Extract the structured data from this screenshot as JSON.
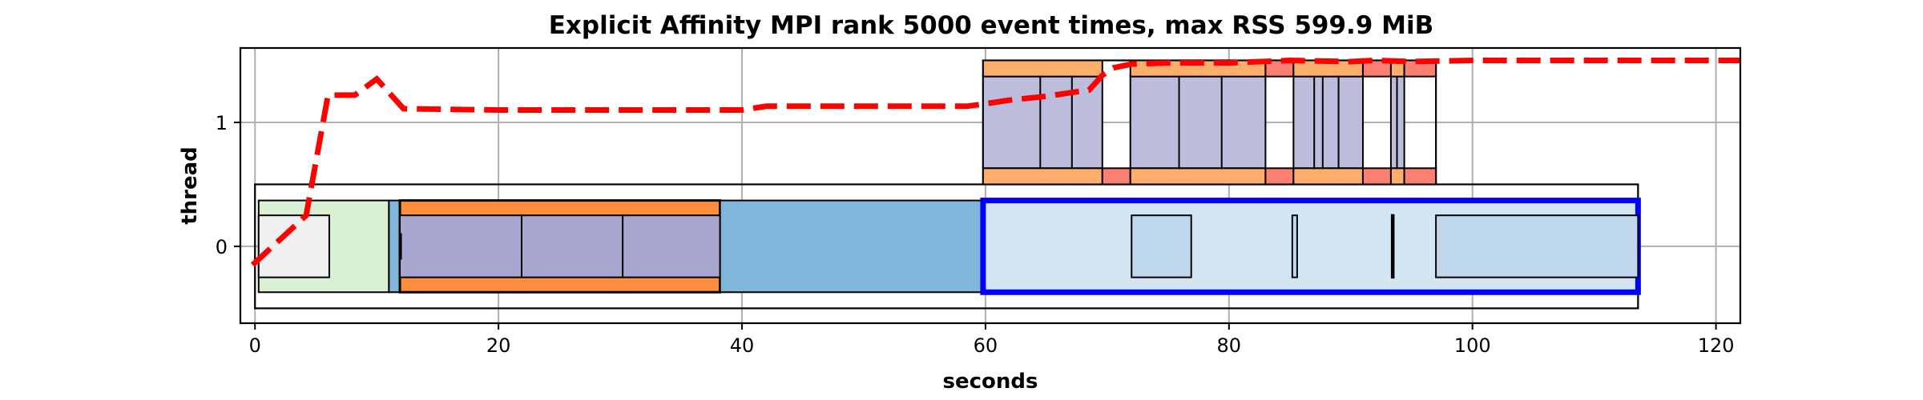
{
  "chart_data": {
    "type": "timeline",
    "title": "Explicit Affinity MPI rank 5000 event times, max RSS 599.9 MiB",
    "xlabel": "seconds",
    "ylabel": "thread",
    "xlim": [
      -1.2,
      122
    ],
    "ylim": [
      -0.62,
      1.6
    ],
    "xticks": [
      0,
      20,
      40,
      60,
      80,
      100,
      120
    ],
    "yticks": [
      0,
      1
    ],
    "grid": true,
    "colors": {
      "outline": "#000000",
      "rss_line": "#ff0000",
      "highlight": "#0000ff",
      "init": "#d9f0d3",
      "init_inner": "#f0f0f0",
      "io": "#fd8d3c",
      "io_light": "#fdae6b",
      "compute": "#a6a6d1",
      "compute_light": "#bcbddc",
      "comm": "#80b6d9",
      "idle": "#d3e5f3",
      "idle_inner": "#c0d8eb",
      "marker": "#fb8072"
    },
    "rects": [
      {
        "x0": 0.0,
        "x1": 113.6,
        "y0": -0.5,
        "y1": 0.5,
        "fill": "none",
        "lw": 2.2
      },
      {
        "x0": 0.3,
        "x1": 11.0,
        "y0": -0.37,
        "y1": 0.37,
        "fill": "init",
        "lw": 2
      },
      {
        "x0": 0.3,
        "x1": 6.1,
        "y0": -0.25,
        "y1": 0.25,
        "fill": "init_inner",
        "lw": 2
      },
      {
        "x0": 11.0,
        "x1": 11.9,
        "y0": -0.37,
        "y1": 0.37,
        "fill": "comm",
        "lw": 2
      },
      {
        "x0": 11.9,
        "x1": 38.2,
        "y0": -0.37,
        "y1": 0.37,
        "fill": "io",
        "lw": 3
      },
      {
        "x0": 11.9,
        "x1": 38.2,
        "y0": -0.25,
        "y1": 0.25,
        "fill": "compute",
        "lw": 2
      },
      {
        "x0": 11.9,
        "x1": 12.0,
        "y0": -0.1,
        "y1": 0.1,
        "fill": "compute",
        "lw": 2
      },
      {
        "x0": 21.9,
        "x1": 21.9,
        "y0": -0.25,
        "y1": 0.25,
        "fill": "compute",
        "lw": 2
      },
      {
        "x0": 30.2,
        "x1": 30.2,
        "y0": -0.25,
        "y1": 0.25,
        "fill": "compute",
        "lw": 2
      },
      {
        "x0": 38.2,
        "x1": 59.8,
        "y0": -0.37,
        "y1": 0.37,
        "fill": "comm",
        "lw": 2
      },
      {
        "x0": 59.8,
        "x1": 113.6,
        "y0": -0.37,
        "y1": 0.37,
        "fill": "idle",
        "lw": 7,
        "stroke": "highlight"
      },
      {
        "x0": 72.0,
        "x1": 76.9,
        "y0": -0.25,
        "y1": 0.25,
        "fill": "idle_inner",
        "lw": 2
      },
      {
        "x0": 85.2,
        "x1": 85.6,
        "y0": -0.25,
        "y1": 0.25,
        "fill": "idle_inner",
        "lw": 2
      },
      {
        "x0": 93.4,
        "x1": 93.5,
        "y0": -0.25,
        "y1": 0.25,
        "fill": "idle_inner",
        "lw": 3
      },
      {
        "x0": 97.0,
        "x1": 113.6,
        "y0": -0.25,
        "y1": 0.25,
        "fill": "idle_inner",
        "lw": 2
      },
      {
        "x0": 59.8,
        "x1": 97.0,
        "y0": 0.5,
        "y1": 1.5,
        "fill": "none",
        "lw": 2.2
      },
      {
        "x0": 59.8,
        "x1": 69.6,
        "y0": 0.63,
        "y1": 1.37,
        "fill": "compute_light",
        "lw": 2
      },
      {
        "x0": 59.8,
        "x1": 69.6,
        "y0": 1.37,
        "y1": 1.5,
        "fill": "io_light",
        "lw": 2
      },
      {
        "x0": 59.8,
        "x1": 69.6,
        "y0": 0.5,
        "y1": 0.63,
        "fill": "io_light",
        "lw": 2
      },
      {
        "x0": 64.5,
        "x1": 64.5,
        "y0": 0.63,
        "y1": 1.37,
        "fill": "none",
        "lw": 2
      },
      {
        "x0": 67.1,
        "x1": 67.1,
        "y0": 0.63,
        "y1": 1.37,
        "fill": "none",
        "lw": 2
      },
      {
        "x0": 69.6,
        "x1": 71.9,
        "y0": 0.5,
        "y1": 0.63,
        "fill": "marker",
        "lw": 2
      },
      {
        "x0": 71.9,
        "x1": 83.0,
        "y0": 0.63,
        "y1": 1.37,
        "fill": "compute_light",
        "lw": 2
      },
      {
        "x0": 71.9,
        "x1": 83.0,
        "y0": 1.37,
        "y1": 1.5,
        "fill": "io_light",
        "lw": 2
      },
      {
        "x0": 71.9,
        "x1": 83.0,
        "y0": 0.5,
        "y1": 0.63,
        "fill": "io_light",
        "lw": 2
      },
      {
        "x0": 75.9,
        "x1": 75.9,
        "y0": 0.63,
        "y1": 1.37,
        "fill": "none",
        "lw": 2
      },
      {
        "x0": 79.4,
        "x1": 79.4,
        "y0": 0.63,
        "y1": 1.37,
        "fill": "none",
        "lw": 2
      },
      {
        "x0": 83.0,
        "x1": 85.3,
        "y0": 1.37,
        "y1": 1.5,
        "fill": "marker",
        "lw": 2
      },
      {
        "x0": 83.0,
        "x1": 85.3,
        "y0": 0.5,
        "y1": 0.63,
        "fill": "marker",
        "lw": 2
      },
      {
        "x0": 85.3,
        "x1": 91.0,
        "y0": 0.63,
        "y1": 1.37,
        "fill": "compute_light",
        "lw": 2
      },
      {
        "x0": 85.3,
        "x1": 91.0,
        "y0": 1.37,
        "y1": 1.5,
        "fill": "io_light",
        "lw": 2
      },
      {
        "x0": 85.3,
        "x1": 91.0,
        "y0": 0.5,
        "y1": 0.63,
        "fill": "io_light",
        "lw": 2
      },
      {
        "x0": 87.0,
        "x1": 87.0,
        "y0": 0.63,
        "y1": 1.37,
        "fill": "none",
        "lw": 2
      },
      {
        "x0": 87.7,
        "x1": 87.7,
        "y0": 0.63,
        "y1": 1.37,
        "fill": "none",
        "lw": 2
      },
      {
        "x0": 89.0,
        "x1": 89.0,
        "y0": 0.63,
        "y1": 1.37,
        "fill": "none",
        "lw": 2
      },
      {
        "x0": 91.0,
        "x1": 93.3,
        "y0": 1.37,
        "y1": 1.5,
        "fill": "marker",
        "lw": 2
      },
      {
        "x0": 91.0,
        "x1": 93.3,
        "y0": 0.5,
        "y1": 0.63,
        "fill": "marker",
        "lw": 2
      },
      {
        "x0": 93.3,
        "x1": 94.4,
        "y0": 0.63,
        "y1": 1.37,
        "fill": "compute_light",
        "lw": 2
      },
      {
        "x0": 93.3,
        "x1": 94.4,
        "y0": 1.37,
        "y1": 1.5,
        "fill": "io_light",
        "lw": 2
      },
      {
        "x0": 93.3,
        "x1": 94.4,
        "y0": 0.5,
        "y1": 0.63,
        "fill": "io_light",
        "lw": 2
      },
      {
        "x0": 93.8,
        "x1": 93.8,
        "y0": 0.63,
        "y1": 1.37,
        "fill": "none",
        "lw": 2
      },
      {
        "x0": 94.4,
        "x1": 97.0,
        "y0": 1.37,
        "y1": 1.5,
        "fill": "marker",
        "lw": 2
      },
      {
        "x0": 94.4,
        "x1": 97.0,
        "y0": 0.5,
        "y1": 0.63,
        "fill": "marker",
        "lw": 2
      }
    ],
    "rss_series": {
      "x": [
        -0.2,
        4.2,
        6.0,
        8.2,
        10.0,
        12.2,
        20,
        30,
        40,
        42,
        50,
        58.5,
        60,
        62,
        65,
        67,
        68.5,
        69.6,
        70.5,
        72,
        75,
        80,
        85,
        90,
        92,
        95,
        100,
        110,
        122
      ],
      "y": [
        -0.15,
        0.25,
        1.22,
        1.22,
        1.35,
        1.11,
        1.1,
        1.1,
        1.1,
        1.13,
        1.13,
        1.13,
        1.15,
        1.18,
        1.21,
        1.24,
        1.26,
        1.38,
        1.44,
        1.47,
        1.48,
        1.48,
        1.5,
        1.49,
        1.5,
        1.49,
        1.5,
        1.5,
        1.5
      ]
    }
  }
}
